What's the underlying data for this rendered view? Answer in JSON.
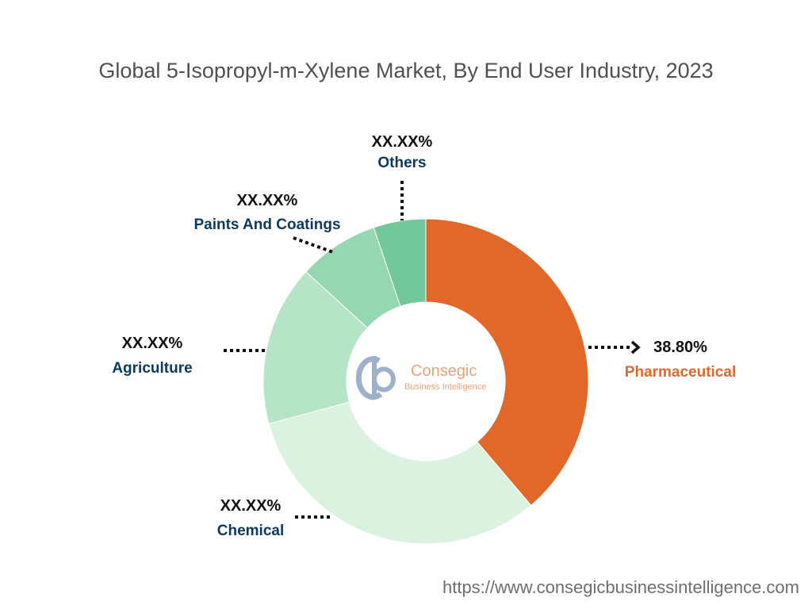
{
  "chart_data": {
    "type": "pie",
    "variant": "donut",
    "title": "Global 5-Isopropyl-m-Xylene Market, By End User Industry, 2023",
    "slices": [
      {
        "name": "Pharmaceutical",
        "value": 38.8,
        "label": "38.80%",
        "color": "#E2682A",
        "label_color": "#E2682A"
      },
      {
        "name": "Chemical",
        "value": 32.0,
        "label": "XX.XX%",
        "color": "#DCF2E0",
        "label_color": "#0D3A5C"
      },
      {
        "name": "Agriculture",
        "value": 16.0,
        "label": "XX.XX%",
        "color": "#B5E5C6",
        "label_color": "#0D3A5C"
      },
      {
        "name": "Paints And Coatings",
        "value": 8.0,
        "label": "XX.XX%",
        "color": "#95D7B0",
        "label_color": "#0D3A5C"
      },
      {
        "name": "Others",
        "value": 5.2,
        "label": "XX.XX%",
        "color": "#72C89A",
        "label_color": "#0D3A5C"
      }
    ]
  },
  "watermark": {
    "brand": "Consegic",
    "tagline": "Business Intelligence",
    "brand_color": "#E8A27A",
    "mark_color": "#9DB1CB"
  },
  "footer": {
    "url": "https://www.consegicbusinessintelligence.com"
  }
}
